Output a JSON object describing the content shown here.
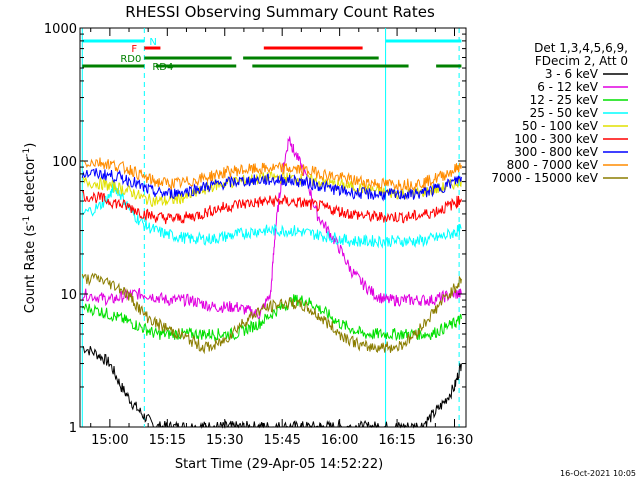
{
  "footer_timestamp": "16-Oct-2021 10:05",
  "chart_data": {
    "type": "line",
    "title": "RHESSI Observing Summary Count Rates",
    "xlabel": "Start Time (29-Apr-05 14:52:22)",
    "ylabel_prefix": "Count Rate (s",
    "ylabel_sup1": "-1",
    "ylabel_mid": " detector",
    "ylabel_sup2": "-1",
    "ylabel_suffix": ")",
    "x_range_min": [
      14.87,
      16.55
    ],
    "y_scale": "log",
    "ylim": [
      1,
      1000
    ],
    "xticks": [
      {
        "v": 15.0,
        "label": "15:00"
      },
      {
        "v": 15.25,
        "label": "15:15"
      },
      {
        "v": 15.5,
        "label": "15:30"
      },
      {
        "v": 15.75,
        "label": "15:45"
      },
      {
        "v": 16.0,
        "label": "16:00"
      },
      {
        "v": 16.25,
        "label": "16:15"
      },
      {
        "v": 16.5,
        "label": "16:30"
      }
    ],
    "yticks": [
      {
        "v": 1,
        "label": "1"
      },
      {
        "v": 10,
        "label": "10"
      },
      {
        "v": 100,
        "label": "100"
      },
      {
        "v": 1000,
        "label": "1000"
      }
    ],
    "legend_header": [
      "Det 1,3,4,5,6,9,",
      "FDecim 2, Att 0"
    ],
    "legend_position": "right",
    "series": [
      {
        "name": "3 - 6 keV",
        "color": "#000000",
        "x": [
          14.88,
          14.95,
          15.0,
          15.05,
          15.1,
          15.15,
          15.2,
          15.25,
          15.3,
          15.35,
          15.4,
          15.45,
          15.5,
          15.55,
          15.6,
          15.65,
          15.7,
          15.75,
          15.8,
          15.85,
          15.9,
          15.95,
          16.0,
          16.05,
          16.1,
          16.15,
          16.2,
          16.25,
          16.3,
          16.35,
          16.4,
          16.45,
          16.5,
          16.53
        ],
        "y": [
          4,
          3.5,
          3,
          2,
          1.5,
          1.2,
          1,
          1,
          1,
          1,
          1,
          1,
          1,
          1,
          1,
          1,
          1,
          1,
          1,
          1,
          1,
          1,
          1,
          1,
          1,
          1,
          1,
          1,
          1,
          1,
          1.2,
          1.5,
          2,
          3
        ]
      },
      {
        "name": "6 - 12 keV",
        "color": "#e000e0",
        "x": [
          14.88,
          14.95,
          15.0,
          15.05,
          15.1,
          15.15,
          15.2,
          15.25,
          15.3,
          15.35,
          15.4,
          15.45,
          15.5,
          15.55,
          15.6,
          15.65,
          15.7,
          15.72,
          15.75,
          15.78,
          15.8,
          15.85,
          15.9,
          15.95,
          16.0,
          16.05,
          16.1,
          16.15,
          16.2,
          16.25,
          16.3,
          16.35,
          16.4,
          16.45,
          16.5,
          16.53
        ],
        "y": [
          10,
          9.5,
          9,
          9.5,
          10,
          10,
          9.5,
          9,
          9,
          9,
          8.5,
          8,
          8,
          8,
          7.5,
          7,
          10,
          30,
          80,
          150,
          120,
          80,
          40,
          30,
          22,
          15,
          12,
          10,
          9,
          9,
          9,
          9,
          9,
          9.5,
          10,
          10
        ]
      },
      {
        "name": "12 - 25 keV",
        "color": "#00e000",
        "x": [
          14.88,
          14.95,
          15.0,
          15.05,
          15.1,
          15.15,
          15.2,
          15.25,
          15.3,
          15.35,
          15.4,
          15.45,
          15.5,
          15.55,
          15.6,
          15.65,
          15.7,
          15.75,
          15.8,
          15.85,
          15.9,
          15.95,
          16.0,
          16.05,
          16.1,
          16.15,
          16.2,
          16.25,
          16.3,
          16.35,
          16.4,
          16.45,
          16.5,
          16.53
        ],
        "y": [
          8,
          7.5,
          7,
          6.5,
          6,
          5.5,
          5,
          5,
          5,
          5,
          5,
          5,
          5,
          5,
          5.5,
          6,
          7,
          8,
          9,
          9,
          8,
          7,
          6,
          5.5,
          5,
          5,
          5,
          5,
          5,
          5,
          5,
          5.5,
          6,
          6.5
        ]
      },
      {
        "name": "25 - 50 keV",
        "color": "#00ffff",
        "x": [
          14.88,
          14.95,
          15.0,
          15.02,
          15.05,
          15.1,
          15.15,
          15.2,
          15.25,
          15.3,
          15.35,
          15.4,
          15.45,
          15.5,
          15.55,
          15.6,
          15.65,
          15.7,
          15.75,
          15.8,
          15.85,
          15.9,
          15.95,
          16.0,
          16.05,
          16.1,
          16.15,
          16.2,
          16.25,
          16.3,
          16.35,
          16.4,
          16.45,
          16.5,
          16.53
        ],
        "y": [
          40,
          45,
          55,
          65,
          55,
          40,
          33,
          30,
          28,
          27,
          26,
          26,
          26,
          27,
          28,
          29,
          30,
          30,
          30,
          30,
          29,
          28,
          27,
          26,
          25,
          25,
          25,
          25,
          25,
          25,
          25,
          26,
          27,
          29,
          31
        ]
      },
      {
        "name": "50 - 100 keV",
        "color": "#e0e000",
        "x": [
          14.88,
          14.95,
          15.0,
          15.05,
          15.1,
          15.15,
          15.2,
          15.25,
          15.3,
          15.35,
          15.4,
          15.45,
          15.5,
          15.55,
          15.6,
          15.65,
          15.7,
          15.75,
          15.8,
          15.85,
          15.9,
          15.95,
          16.0,
          16.05,
          16.1,
          16.15,
          16.2,
          16.25,
          16.3,
          16.35,
          16.4,
          16.45,
          16.5,
          16.53
        ],
        "y": [
          70,
          68,
          65,
          62,
          58,
          52,
          50,
          50,
          52,
          55,
          60,
          65,
          68,
          70,
          72,
          74,
          75,
          75,
          74,
          72,
          70,
          68,
          66,
          64,
          62,
          60,
          58,
          57,
          57,
          58,
          60,
          63,
          68,
          72
        ]
      },
      {
        "name": "100 - 300 keV",
        "color": "#ff0000",
        "x": [
          14.88,
          14.95,
          15.0,
          15.05,
          15.1,
          15.15,
          15.2,
          15.25,
          15.3,
          15.35,
          15.4,
          15.45,
          15.5,
          15.55,
          15.6,
          15.65,
          15.7,
          15.75,
          15.8,
          15.85,
          15.9,
          15.95,
          16.0,
          16.05,
          16.1,
          16.15,
          16.2,
          16.25,
          16.3,
          16.35,
          16.4,
          16.45,
          16.5,
          16.53
        ],
        "y": [
          55,
          53,
          50,
          47,
          44,
          40,
          38,
          37,
          37,
          38,
          40,
          43,
          45,
          47,
          48,
          49,
          50,
          50,
          49,
          48,
          46,
          44,
          42,
          40,
          39,
          38,
          38,
          38,
          38,
          39,
          41,
          44,
          48,
          52
        ]
      },
      {
        "name": "300 - 800 keV",
        "color": "#0000ff",
        "x": [
          14.88,
          14.95,
          15.0,
          15.05,
          15.1,
          15.15,
          15.2,
          15.25,
          15.3,
          15.35,
          15.4,
          15.45,
          15.5,
          15.55,
          15.6,
          15.65,
          15.7,
          15.75,
          15.8,
          15.85,
          15.9,
          15.95,
          16.0,
          16.05,
          16.1,
          16.15,
          16.2,
          16.25,
          16.3,
          16.35,
          16.4,
          16.45,
          16.5,
          16.53
        ],
        "y": [
          80,
          80,
          78,
          75,
          70,
          62,
          58,
          57,
          58,
          60,
          63,
          66,
          68,
          70,
          71,
          72,
          72,
          72,
          71,
          69,
          66,
          63,
          60,
          58,
          57,
          56,
          56,
          56,
          56,
          57,
          60,
          64,
          70,
          76
        ]
      },
      {
        "name": "800 - 7000 keV",
        "color": "#ff8c00",
        "x": [
          14.88,
          14.95,
          15.0,
          15.05,
          15.1,
          15.15,
          15.2,
          15.25,
          15.3,
          15.35,
          15.4,
          15.45,
          15.5,
          15.55,
          15.6,
          15.65,
          15.7,
          15.75,
          15.8,
          15.85,
          15.9,
          15.95,
          16.0,
          16.05,
          16.1,
          16.15,
          16.2,
          16.25,
          16.3,
          16.35,
          16.4,
          16.45,
          16.5,
          16.53
        ],
        "y": [
          98,
          98,
          95,
          90,
          85,
          75,
          70,
          68,
          68,
          70,
          74,
          78,
          82,
          85,
          86,
          87,
          88,
          88,
          87,
          85,
          82,
          78,
          75,
          72,
          70,
          68,
          67,
          67,
          67,
          68,
          72,
          78,
          86,
          93
        ]
      },
      {
        "name": "7000 - 15000 keV",
        "color": "#8b7d00",
        "x": [
          14.88,
          14.95,
          15.0,
          15.05,
          15.1,
          15.15,
          15.2,
          15.25,
          15.3,
          15.35,
          15.4,
          15.45,
          15.5,
          15.55,
          15.6,
          15.65,
          15.7,
          15.75,
          15.8,
          15.85,
          15.9,
          15.95,
          16.0,
          16.05,
          16.1,
          16.15,
          16.2,
          16.25,
          16.3,
          16.35,
          16.4,
          16.45,
          16.5,
          16.53
        ],
        "y": [
          13,
          13,
          12,
          11,
          9,
          7,
          6,
          5.5,
          5,
          4.5,
          4,
          4,
          4.5,
          5.5,
          6.5,
          7.5,
          8,
          8.5,
          8.5,
          8,
          7,
          6,
          5,
          4.5,
          4,
          4,
          4,
          4,
          4.5,
          5.5,
          7,
          9,
          11,
          13
        ]
      }
    ],
    "flag_bars": [
      {
        "label": "N",
        "color": "#00ffff",
        "segments": [
          [
            14.88,
            15.15
          ],
          [
            16.2,
            16.53
          ]
        ]
      },
      {
        "label": "F",
        "color": "#ff0000",
        "segments": [
          [
            15.15,
            15.22
          ],
          [
            15.67,
            16.1
          ]
        ]
      },
      {
        "label": "RD0",
        "color": "#008000",
        "segments": [
          [
            15.15,
            15.53
          ],
          [
            15.58,
            16.17
          ]
        ]
      },
      {
        "label": "RD4",
        "color": "#008000",
        "segments": [
          [
            14.88,
            15.15
          ],
          [
            15.2,
            15.55
          ],
          [
            15.62,
            16.3
          ],
          [
            16.42,
            16.53
          ]
        ]
      }
    ],
    "vlines": [
      {
        "x": 14.88,
        "style": "solid"
      },
      {
        "x": 15.15,
        "style": "dashed"
      },
      {
        "x": 16.2,
        "style": "solid"
      },
      {
        "x": 16.52,
        "style": "dashed"
      }
    ]
  }
}
